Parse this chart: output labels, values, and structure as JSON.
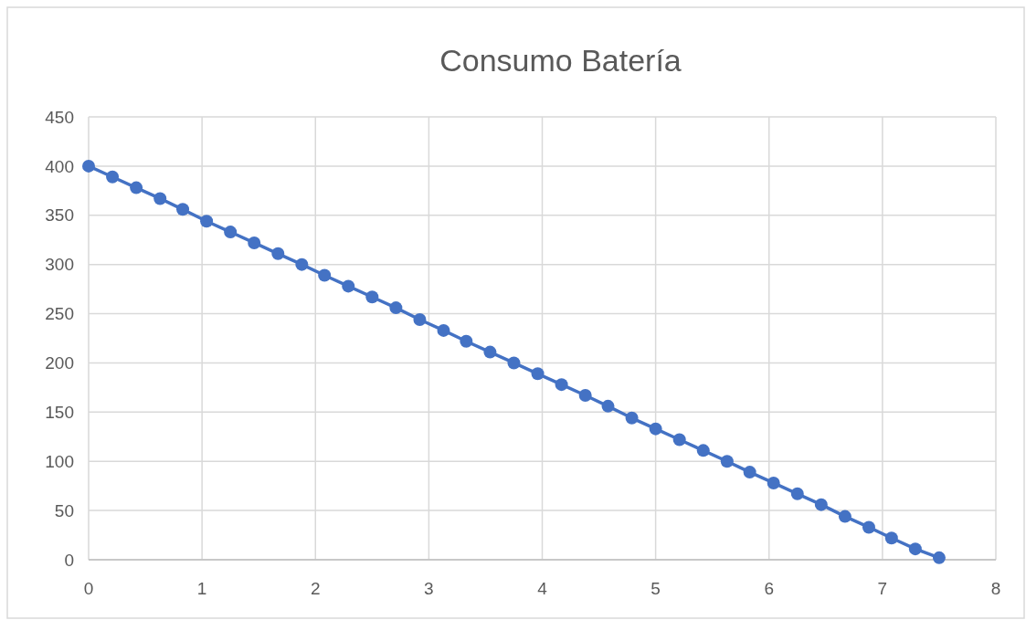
{
  "chart_data": {
    "type": "line",
    "title": "Consumo Batería",
    "x": [
      0,
      0.21,
      0.42,
      0.63,
      0.83,
      1.04,
      1.25,
      1.46,
      1.67,
      1.88,
      2.08,
      2.29,
      2.5,
      2.71,
      2.92,
      3.13,
      3.33,
      3.54,
      3.75,
      3.96,
      4.17,
      4.38,
      4.58,
      4.79,
      5,
      5.21,
      5.42,
      5.63,
      5.83,
      6.04,
      6.25,
      6.46,
      6.67,
      6.88,
      7.08,
      7.29,
      7.5
    ],
    "series": [
      {
        "color": "#4472c4",
        "values": [
          400,
          389,
          378,
          367,
          356,
          344,
          333,
          322,
          311,
          300,
          289,
          278,
          267,
          256,
          244,
          233,
          222,
          211,
          200,
          189,
          178,
          167,
          156,
          144,
          133,
          122,
          111,
          100,
          89,
          78,
          67,
          56,
          44,
          33,
          22,
          11,
          2
        ]
      }
    ],
    "xlim": [
      0,
      8
    ],
    "xticks": [
      0,
      1,
      2,
      3,
      4,
      5,
      6,
      7,
      8
    ],
    "ylim": [
      0,
      450
    ],
    "yticks": [
      0,
      50,
      100,
      150,
      200,
      250,
      300,
      350,
      400,
      450
    ],
    "grid": true,
    "marker": "circle",
    "line_style": "solid"
  }
}
